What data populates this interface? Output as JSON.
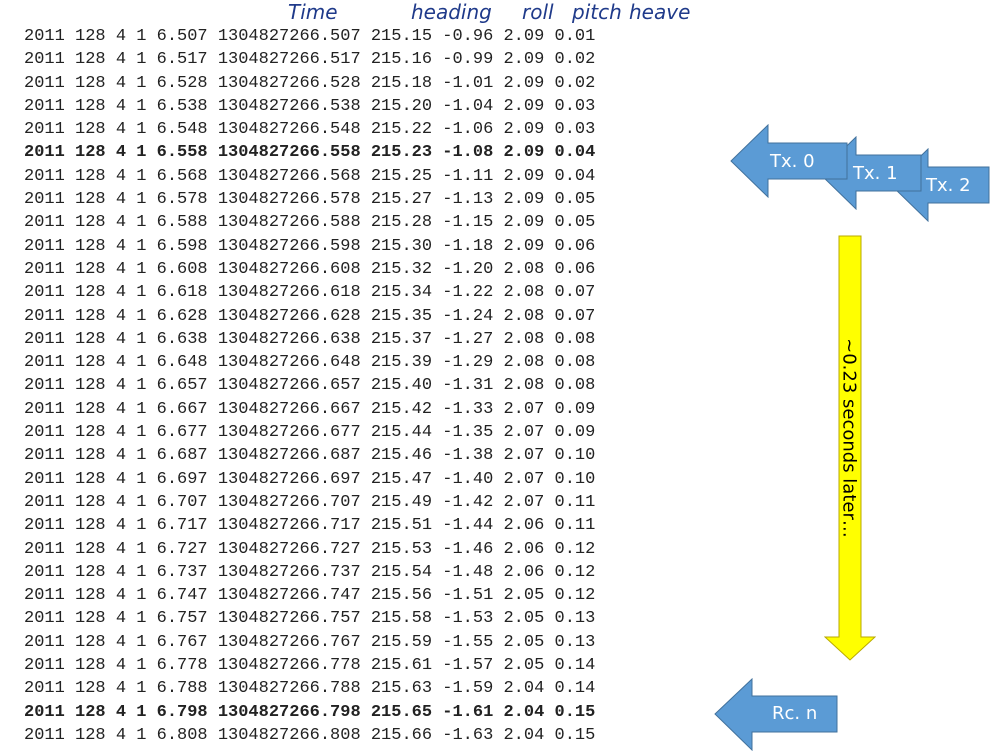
{
  "headers": {
    "time": "Time",
    "heading": "heading",
    "roll": "roll",
    "pitch": "pitch",
    "heave": "heave"
  },
  "rows": [
    {
      "text": "2011 128 4 1 6.507 1304827266.507 215.15 -0.96 2.09 0.01",
      "bold": false
    },
    {
      "text": "2011 128 4 1 6.517 1304827266.517 215.16 -0.99 2.09 0.02",
      "bold": false
    },
    {
      "text": "2011 128 4 1 6.528 1304827266.528 215.18 -1.01 2.09 0.02",
      "bold": false
    },
    {
      "text": "2011 128 4 1 6.538 1304827266.538 215.20 -1.04 2.09 0.03",
      "bold": false
    },
    {
      "text": "2011 128 4 1 6.548 1304827266.548 215.22 -1.06 2.09 0.03",
      "bold": false
    },
    {
      "text": "2011 128 4 1 6.558 1304827266.558 215.23 -1.08 2.09 0.04",
      "bold": true
    },
    {
      "text": "2011 128 4 1 6.568 1304827266.568 215.25 -1.11 2.09 0.04",
      "bold": false
    },
    {
      "text": "2011 128 4 1 6.578 1304827266.578 215.27 -1.13 2.09 0.05",
      "bold": false
    },
    {
      "text": "2011 128 4 1 6.588 1304827266.588 215.28 -1.15 2.09 0.05",
      "bold": false
    },
    {
      "text": "2011 128 4 1 6.598 1304827266.598 215.30 -1.18 2.09 0.06",
      "bold": false
    },
    {
      "text": "2011 128 4 1 6.608 1304827266.608 215.32 -1.20 2.08 0.06",
      "bold": false
    },
    {
      "text": "2011 128 4 1 6.618 1304827266.618 215.34 -1.22 2.08 0.07",
      "bold": false
    },
    {
      "text": "2011 128 4 1 6.628 1304827266.628 215.35 -1.24 2.08 0.07",
      "bold": false
    },
    {
      "text": "2011 128 4 1 6.638 1304827266.638 215.37 -1.27 2.08 0.08",
      "bold": false
    },
    {
      "text": "2011 128 4 1 6.648 1304827266.648 215.39 -1.29 2.08 0.08",
      "bold": false
    },
    {
      "text": "2011 128 4 1 6.657 1304827266.657 215.40 -1.31 2.08 0.08",
      "bold": false
    },
    {
      "text": "2011 128 4 1 6.667 1304827266.667 215.42 -1.33 2.07 0.09",
      "bold": false
    },
    {
      "text": "2011 128 4 1 6.677 1304827266.677 215.44 -1.35 2.07 0.09",
      "bold": false
    },
    {
      "text": "2011 128 4 1 6.687 1304827266.687 215.46 -1.38 2.07 0.10",
      "bold": false
    },
    {
      "text": "2011 128 4 1 6.697 1304827266.697 215.47 -1.40 2.07 0.10",
      "bold": false
    },
    {
      "text": "2011 128 4 1 6.707 1304827266.707 215.49 -1.42 2.07 0.11",
      "bold": false
    },
    {
      "text": "2011 128 4 1 6.717 1304827266.717 215.51 -1.44 2.06 0.11",
      "bold": false
    },
    {
      "text": "2011 128 4 1 6.727 1304827266.727 215.53 -1.46 2.06 0.12",
      "bold": false
    },
    {
      "text": "2011 128 4 1 6.737 1304827266.737 215.54 -1.48 2.06 0.12",
      "bold": false
    },
    {
      "text": "2011 128 4 1 6.747 1304827266.747 215.56 -1.51 2.05 0.12",
      "bold": false
    },
    {
      "text": "2011 128 4 1 6.757 1304827266.757 215.58 -1.53 2.05 0.13",
      "bold": false
    },
    {
      "text": "2011 128 4 1 6.767 1304827266.767 215.59 -1.55 2.05 0.13",
      "bold": false
    },
    {
      "text": "2011 128 4 1 6.778 1304827266.778 215.61 -1.57 2.05 0.14",
      "bold": false
    },
    {
      "text": "2011 128 4 1 6.788 1304827266.788 215.63 -1.59 2.04 0.14",
      "bold": false
    },
    {
      "text": "2011 128 4 1 6.798 1304827266.798 215.65 -1.61 2.04 0.15",
      "bold": true
    },
    {
      "text": "2011 128 4 1 6.808 1304827266.808 215.66 -1.63 2.04 0.15",
      "bold": false
    }
  ],
  "callouts": {
    "tx0": "Tx. 0",
    "tx1": "Tx. 1",
    "tx2": "Tx. 2",
    "rcn": "Rc. n",
    "interval": "~0.23 seconds later…"
  },
  "colors": {
    "arrow_blue": "#5b9bd5",
    "arrow_yellow": "#ffff00",
    "header_text": "#1f3a8a"
  }
}
